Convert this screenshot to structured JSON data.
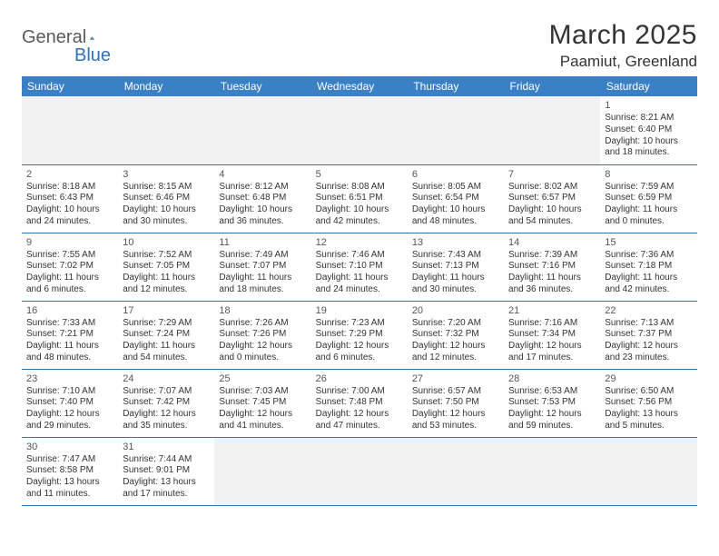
{
  "brand": {
    "part1": "General",
    "part2": "Blue"
  },
  "title": "March 2025",
  "location": "Paamiut, Greenland",
  "colors": {
    "header_bg": "#3b7fc4",
    "border": "#2f72b8",
    "empty_bg": "#f2f2f2",
    "text": "#333333"
  },
  "day_headers": [
    "Sunday",
    "Monday",
    "Tuesday",
    "Wednesday",
    "Thursday",
    "Friday",
    "Saturday"
  ],
  "weeks": [
    [
      null,
      null,
      null,
      null,
      null,
      null,
      {
        "n": "1",
        "sr": "Sunrise: 8:21 AM",
        "ss": "Sunset: 6:40 PM",
        "dl": "Daylight: 10 hours and 18 minutes."
      }
    ],
    [
      {
        "n": "2",
        "sr": "Sunrise: 8:18 AM",
        "ss": "Sunset: 6:43 PM",
        "dl": "Daylight: 10 hours and 24 minutes."
      },
      {
        "n": "3",
        "sr": "Sunrise: 8:15 AM",
        "ss": "Sunset: 6:46 PM",
        "dl": "Daylight: 10 hours and 30 minutes."
      },
      {
        "n": "4",
        "sr": "Sunrise: 8:12 AM",
        "ss": "Sunset: 6:48 PM",
        "dl": "Daylight: 10 hours and 36 minutes."
      },
      {
        "n": "5",
        "sr": "Sunrise: 8:08 AM",
        "ss": "Sunset: 6:51 PM",
        "dl": "Daylight: 10 hours and 42 minutes."
      },
      {
        "n": "6",
        "sr": "Sunrise: 8:05 AM",
        "ss": "Sunset: 6:54 PM",
        "dl": "Daylight: 10 hours and 48 minutes."
      },
      {
        "n": "7",
        "sr": "Sunrise: 8:02 AM",
        "ss": "Sunset: 6:57 PM",
        "dl": "Daylight: 10 hours and 54 minutes."
      },
      {
        "n": "8",
        "sr": "Sunrise: 7:59 AM",
        "ss": "Sunset: 6:59 PM",
        "dl": "Daylight: 11 hours and 0 minutes."
      }
    ],
    [
      {
        "n": "9",
        "sr": "Sunrise: 7:55 AM",
        "ss": "Sunset: 7:02 PM",
        "dl": "Daylight: 11 hours and 6 minutes."
      },
      {
        "n": "10",
        "sr": "Sunrise: 7:52 AM",
        "ss": "Sunset: 7:05 PM",
        "dl": "Daylight: 11 hours and 12 minutes."
      },
      {
        "n": "11",
        "sr": "Sunrise: 7:49 AM",
        "ss": "Sunset: 7:07 PM",
        "dl": "Daylight: 11 hours and 18 minutes."
      },
      {
        "n": "12",
        "sr": "Sunrise: 7:46 AM",
        "ss": "Sunset: 7:10 PM",
        "dl": "Daylight: 11 hours and 24 minutes."
      },
      {
        "n": "13",
        "sr": "Sunrise: 7:43 AM",
        "ss": "Sunset: 7:13 PM",
        "dl": "Daylight: 11 hours and 30 minutes."
      },
      {
        "n": "14",
        "sr": "Sunrise: 7:39 AM",
        "ss": "Sunset: 7:16 PM",
        "dl": "Daylight: 11 hours and 36 minutes."
      },
      {
        "n": "15",
        "sr": "Sunrise: 7:36 AM",
        "ss": "Sunset: 7:18 PM",
        "dl": "Daylight: 11 hours and 42 minutes."
      }
    ],
    [
      {
        "n": "16",
        "sr": "Sunrise: 7:33 AM",
        "ss": "Sunset: 7:21 PM",
        "dl": "Daylight: 11 hours and 48 minutes."
      },
      {
        "n": "17",
        "sr": "Sunrise: 7:29 AM",
        "ss": "Sunset: 7:24 PM",
        "dl": "Daylight: 11 hours and 54 minutes."
      },
      {
        "n": "18",
        "sr": "Sunrise: 7:26 AM",
        "ss": "Sunset: 7:26 PM",
        "dl": "Daylight: 12 hours and 0 minutes."
      },
      {
        "n": "19",
        "sr": "Sunrise: 7:23 AM",
        "ss": "Sunset: 7:29 PM",
        "dl": "Daylight: 12 hours and 6 minutes."
      },
      {
        "n": "20",
        "sr": "Sunrise: 7:20 AM",
        "ss": "Sunset: 7:32 PM",
        "dl": "Daylight: 12 hours and 12 minutes."
      },
      {
        "n": "21",
        "sr": "Sunrise: 7:16 AM",
        "ss": "Sunset: 7:34 PM",
        "dl": "Daylight: 12 hours and 17 minutes."
      },
      {
        "n": "22",
        "sr": "Sunrise: 7:13 AM",
        "ss": "Sunset: 7:37 PM",
        "dl": "Daylight: 12 hours and 23 minutes."
      }
    ],
    [
      {
        "n": "23",
        "sr": "Sunrise: 7:10 AM",
        "ss": "Sunset: 7:40 PM",
        "dl": "Daylight: 12 hours and 29 minutes."
      },
      {
        "n": "24",
        "sr": "Sunrise: 7:07 AM",
        "ss": "Sunset: 7:42 PM",
        "dl": "Daylight: 12 hours and 35 minutes."
      },
      {
        "n": "25",
        "sr": "Sunrise: 7:03 AM",
        "ss": "Sunset: 7:45 PM",
        "dl": "Daylight: 12 hours and 41 minutes."
      },
      {
        "n": "26",
        "sr": "Sunrise: 7:00 AM",
        "ss": "Sunset: 7:48 PM",
        "dl": "Daylight: 12 hours and 47 minutes."
      },
      {
        "n": "27",
        "sr": "Sunrise: 6:57 AM",
        "ss": "Sunset: 7:50 PM",
        "dl": "Daylight: 12 hours and 53 minutes."
      },
      {
        "n": "28",
        "sr": "Sunrise: 6:53 AM",
        "ss": "Sunset: 7:53 PM",
        "dl": "Daylight: 12 hours and 59 minutes."
      },
      {
        "n": "29",
        "sr": "Sunrise: 6:50 AM",
        "ss": "Sunset: 7:56 PM",
        "dl": "Daylight: 13 hours and 5 minutes."
      }
    ],
    [
      {
        "n": "30",
        "sr": "Sunrise: 7:47 AM",
        "ss": "Sunset: 8:58 PM",
        "dl": "Daylight: 13 hours and 11 minutes."
      },
      {
        "n": "31",
        "sr": "Sunrise: 7:44 AM",
        "ss": "Sunset: 9:01 PM",
        "dl": "Daylight: 13 hours and 17 minutes."
      },
      null,
      null,
      null,
      null,
      null
    ]
  ]
}
